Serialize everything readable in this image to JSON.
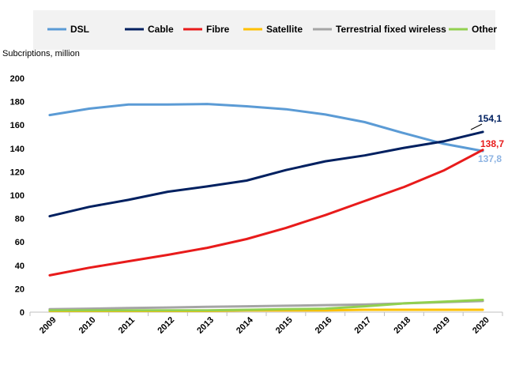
{
  "chart_data": {
    "type": "line",
    "ylabel": "Subcriptions, million",
    "ylim": [
      0,
      200
    ],
    "yticks": [
      0,
      20,
      40,
      60,
      80,
      100,
      120,
      140,
      160,
      180,
      200
    ],
    "x": [
      "2009",
      "2010",
      "2011",
      "2012",
      "2013",
      "2014",
      "2015",
      "2016",
      "2017",
      "2018",
      "2019",
      "2020"
    ],
    "legend_position": "top",
    "grid": false,
    "series": [
      {
        "name": "DSL",
        "color": "#5b9bd5",
        "values": [
          168.5,
          174,
          177.5,
          177.5,
          178,
          176,
          173.5,
          169,
          162.5,
          153,
          144,
          137.8
        ],
        "end_label": "137,8",
        "end_label_color": "#8eb4e3"
      },
      {
        "name": "Cable",
        "color": "#002060",
        "values": [
          82,
          90,
          96,
          103,
          107.5,
          112.5,
          121.5,
          129,
          134,
          140.5,
          146,
          154.1
        ],
        "end_label": "154,1",
        "end_label_color": "#002060"
      },
      {
        "name": "Fibre",
        "color": "#e81b1b",
        "values": [
          31.5,
          38,
          43.5,
          49,
          55,
          62.5,
          72,
          83,
          95,
          107,
          121,
          138.7
        ],
        "end_label": "138,7",
        "end_label_color": "#e81b1b"
      },
      {
        "name": "Satellite",
        "color": "#ffc000",
        "values": [
          1,
          1,
          1,
          1,
          1,
          1.5,
          1.5,
          1.5,
          2,
          2,
          2,
          2
        ]
      },
      {
        "name": "Terrestrial fixed wireless",
        "color": "#a5a5a5",
        "values": [
          2.5,
          3,
          3.5,
          4,
          4.5,
          5,
          5.5,
          6,
          6.5,
          7.5,
          8.5,
          9.5
        ]
      },
      {
        "name": "Other",
        "color": "#92d050",
        "values": [
          1.5,
          1.5,
          1.5,
          1.5,
          1.5,
          2,
          2.5,
          3,
          5,
          7.5,
          9,
          10.5
        ]
      }
    ]
  }
}
